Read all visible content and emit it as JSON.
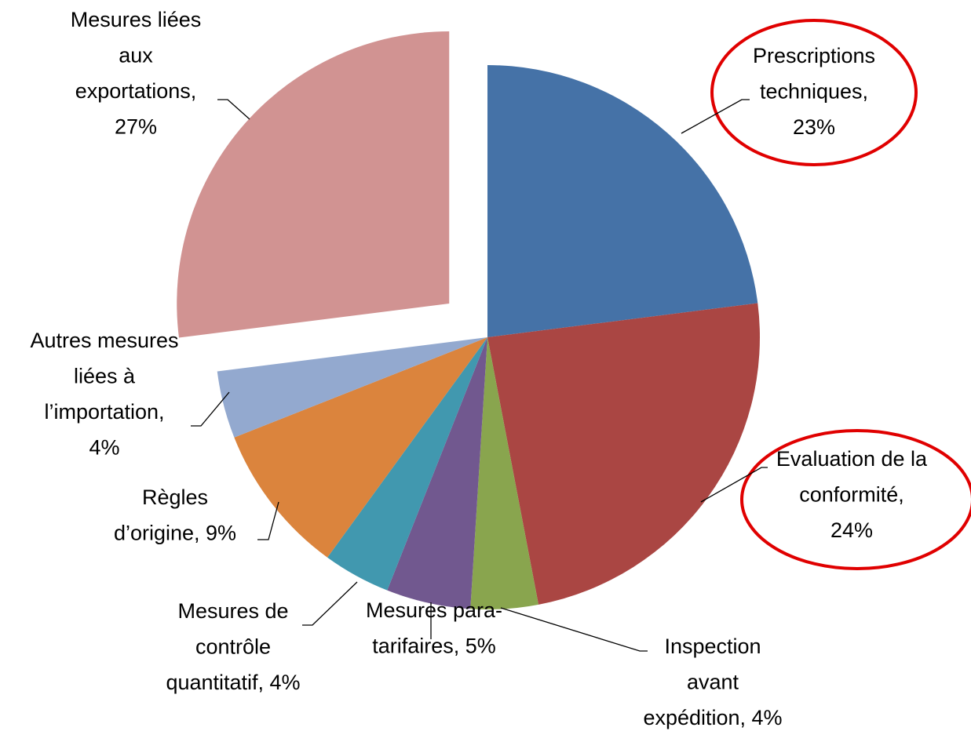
{
  "chart_data": {
    "type": "pie",
    "values": [
      23,
      24,
      4,
      5,
      4,
      9,
      4,
      27
    ],
    "value_labels": [
      "Prescriptions techniques, 23%",
      "Evaluation de la conformité, 24%",
      "Inspection avant expédition, 4%",
      "Mesures para-tarifaires, 5%",
      "Mesures de contrôle quantitatif, 4%",
      "Règles d’origine, 9%",
      "Autres mesures liées à l’importation, 4%",
      "Mesures liées aux exportations, 27%"
    ],
    "colors": [
      "#4572a7",
      "#aa4643",
      "#89a54e",
      "#71588f",
      "#4198af",
      "#db843d",
      "#93a9cf",
      "#d19392"
    ],
    "exploded": [
      false,
      false,
      false,
      false,
      false,
      false,
      false,
      true
    ]
  }
}
